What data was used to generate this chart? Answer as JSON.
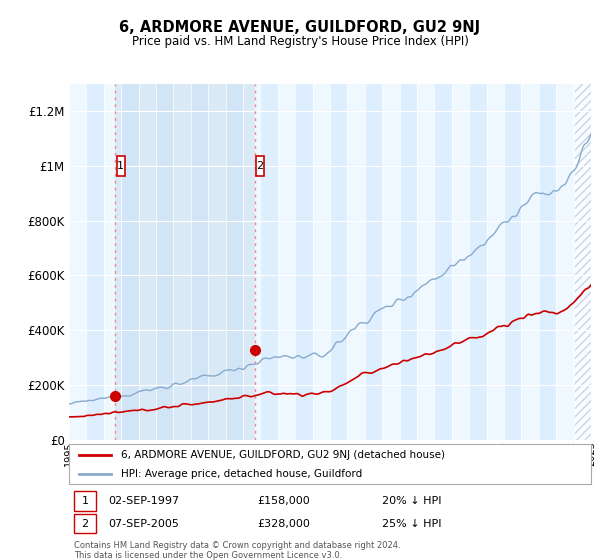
{
  "title": "6, ARDMORE AVENUE, GUILDFORD, GU2 9NJ",
  "subtitle": "Price paid vs. HM Land Registry's House Price Index (HPI)",
  "ylim": [
    0,
    1300000
  ],
  "yticks": [
    0,
    200000,
    400000,
    600000,
    800000,
    1000000,
    1200000
  ],
  "ytick_labels": [
    "£0",
    "£200K",
    "£400K",
    "£600K",
    "£800K",
    "£1M",
    "£1.2M"
  ],
  "plot_bg_color": "#ddeeff",
  "grid_color": "#ffffff",
  "sale1_year": 1997.67,
  "sale1_price": 158000,
  "sale2_year": 2005.67,
  "sale2_price": 328000,
  "sale1_date": "02-SEP-1997",
  "sale1_amount": "£158,000",
  "sale1_hpi": "20% ↓ HPI",
  "sale2_date": "07-SEP-2005",
  "sale2_amount": "£328,000",
  "sale2_hpi": "25% ↓ HPI",
  "red_line_color": "#cc0000",
  "blue_line_color": "#88aacc",
  "marker_color": "#cc0000",
  "vline_color": "#ee8888",
  "box_edge_color": "#cc0000",
  "legend_label_red": "6, ARDMORE AVENUE, GUILDFORD, GU2 9NJ (detached house)",
  "legend_label_blue": "HPI: Average price, detached house, Guildford",
  "footer": "Contains HM Land Registry data © Crown copyright and database right 2024.\nThis data is licensed under the Open Government Licence v3.0.",
  "xstart": 1995,
  "xend": 2025
}
